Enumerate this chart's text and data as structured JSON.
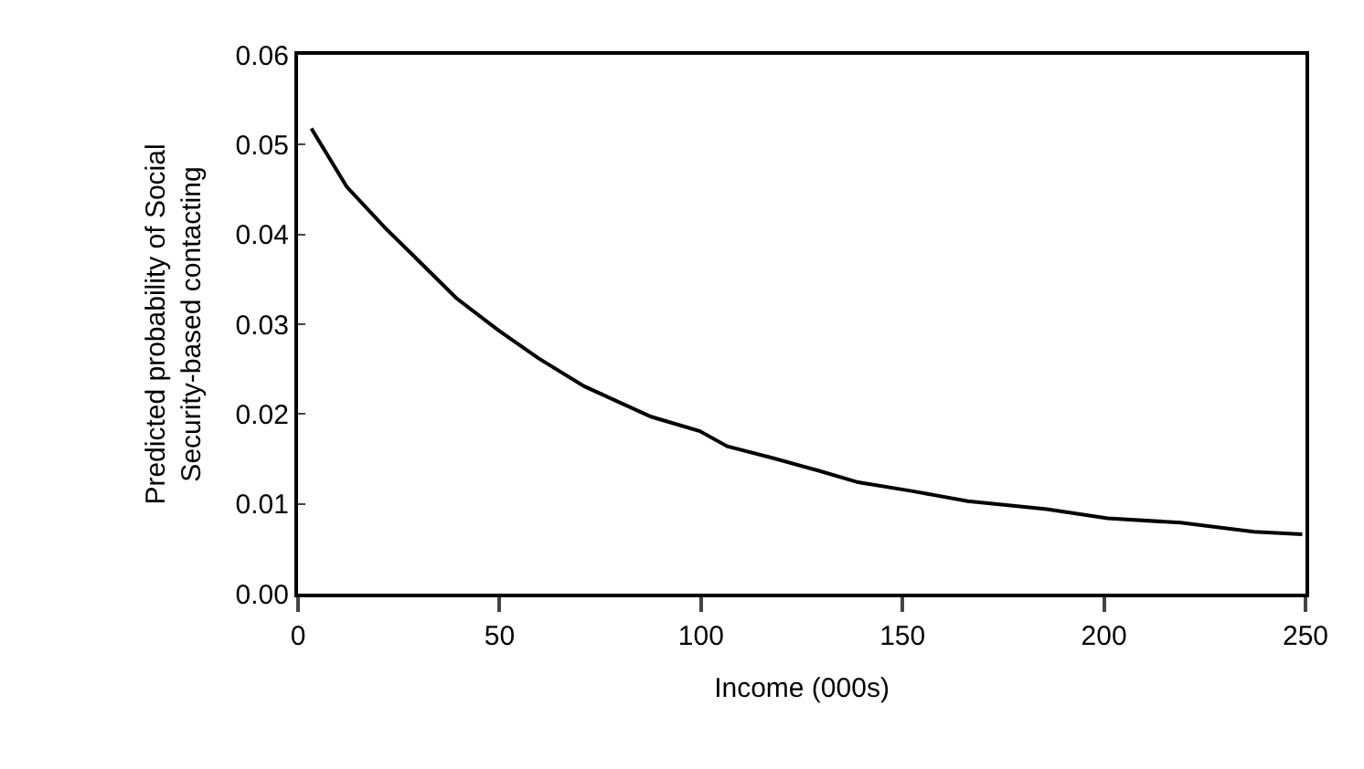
{
  "chart_data": {
    "type": "line",
    "xlabel": "Income (000s)",
    "ylabel": "Predicted probability of Social\nSecurity-based contacting",
    "x": [
      3.3,
      12.1,
      21.9,
      28.7,
      39.3,
      49.8,
      59.7,
      71,
      87.6,
      99.7,
      106.5,
      117.8,
      129.1,
      139,
      152.6,
      166.2,
      185.8,
      200.9,
      219,
      237.2,
      249.2
    ],
    "series": [
      {
        "color": "#000000",
        "values": [
          0.0518,
          0.0453,
          0.0406,
          0.0376,
          0.0329,
          0.0293,
          0.0262,
          0.0231,
          0.0197,
          0.0181,
          0.0164,
          0.0151,
          0.0137,
          0.0124,
          0.0114,
          0.0103,
          0.0094,
          0.0084,
          0.0079,
          0.0069,
          0.0066
        ]
      }
    ],
    "xlim": [
      0,
      250
    ],
    "xticks": [
      0,
      50,
      100,
      150,
      200,
      250
    ],
    "ylim": [
      0,
      0.06
    ],
    "yticks": [
      {
        "value": 0,
        "label": "0.00"
      },
      {
        "value": 0.01,
        "label": "0.01"
      },
      {
        "value": 0.02,
        "label": "0.02"
      },
      {
        "value": 0.03,
        "label": "0.03"
      },
      {
        "value": 0.04,
        "label": "0.04"
      },
      {
        "value": 0.05,
        "label": "0.05"
      },
      {
        "value": 0.06,
        "label": "0.06"
      }
    ],
    "marker": "none",
    "line_style": "solid"
  }
}
